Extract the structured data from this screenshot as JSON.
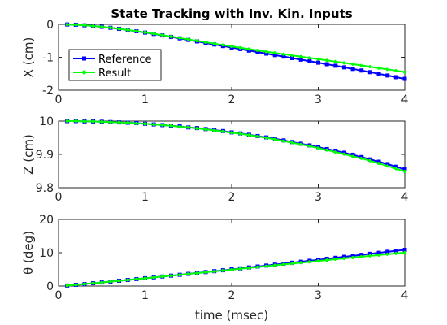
{
  "chart_data": {
    "title": "State Tracking with Inv. Kin. Inputs",
    "xlabel": "time (msec)",
    "legend": {
      "placement": "inside-left",
      "entries": [
        {
          "name": "Reference",
          "color": "#0000ff",
          "marker": "square"
        },
        {
          "name": "Result",
          "color": "#00ff00",
          "marker": "circle"
        }
      ]
    },
    "subplots": [
      {
        "type": "line",
        "ylabel": "X (cm)",
        "xlim": [
          0,
          4
        ],
        "ylim": [
          -2,
          0
        ],
        "xticks": [
          "0",
          "1",
          "2",
          "3",
          "4"
        ],
        "yticks": [
          "-2",
          "-1",
          "0"
        ],
        "x": [
          0.1,
          0.2,
          0.3,
          0.4,
          0.5,
          0.6,
          0.7,
          0.8,
          0.9,
          1.0,
          1.1,
          1.2,
          1.3,
          1.4,
          1.5,
          1.6,
          1.7,
          1.8,
          1.9,
          2.0,
          2.1,
          2.2,
          2.3,
          2.4,
          2.5,
          2.6,
          2.7,
          2.8,
          2.9,
          3.0,
          3.1,
          3.2,
          3.3,
          3.4,
          3.5,
          3.6,
          3.7,
          3.8,
          3.9,
          4.0
        ],
        "series": [
          {
            "name": "Reference",
            "color": "#0000ff",
            "marker": "square",
            "values": [
              -0.003,
              -0.013,
              -0.029,
              -0.05,
              -0.075,
              -0.104,
              -0.137,
              -0.172,
              -0.21,
              -0.25,
              -0.292,
              -0.336,
              -0.38,
              -0.425,
              -0.472,
              -0.518,
              -0.565,
              -0.612,
              -0.659,
              -0.705,
              -0.751,
              -0.797,
              -0.843,
              -0.889,
              -0.934,
              -0.979,
              -1.025,
              -1.071,
              -1.117,
              -1.163,
              -1.21,
              -1.257,
              -1.305,
              -1.353,
              -1.402,
              -1.452,
              -1.502,
              -1.553,
              -1.604,
              -1.655
            ]
          },
          {
            "name": "Result",
            "color": "#00ff00",
            "marker": "circle",
            "values": [
              -0.003,
              -0.013,
              -0.029,
              -0.05,
              -0.075,
              -0.103,
              -0.135,
              -0.169,
              -0.206,
              -0.245,
              -0.285,
              -0.327,
              -0.369,
              -0.412,
              -0.455,
              -0.499,
              -0.542,
              -0.585,
              -0.628,
              -0.67,
              -0.711,
              -0.751,
              -0.791,
              -0.83,
              -0.868,
              -0.906,
              -0.944,
              -0.981,
              -1.018,
              -1.056,
              -1.093,
              -1.131,
              -1.169,
              -1.208,
              -1.247,
              -1.286,
              -1.326,
              -1.366,
              -1.406,
              -1.446
            ]
          }
        ]
      },
      {
        "type": "line",
        "ylabel": "Z (cm)",
        "xlim": [
          0,
          4
        ],
        "ylim": [
          9.8,
          10
        ],
        "xticks": [
          "0",
          "1",
          "2",
          "3",
          "4"
        ],
        "yticks": [
          "9.8",
          "9.9",
          "10"
        ],
        "x": [
          0.1,
          0.2,
          0.3,
          0.4,
          0.5,
          0.6,
          0.7,
          0.8,
          0.9,
          1.0,
          1.1,
          1.2,
          1.3,
          1.4,
          1.5,
          1.6,
          1.7,
          1.8,
          1.9,
          2.0,
          2.1,
          2.2,
          2.3,
          2.4,
          2.5,
          2.6,
          2.7,
          2.8,
          2.9,
          3.0,
          3.1,
          3.2,
          3.3,
          3.4,
          3.5,
          3.6,
          3.7,
          3.8,
          3.9,
          4.0
        ],
        "series": [
          {
            "name": "Reference",
            "color": "#0000ff",
            "marker": "square",
            "values": [
              10.0,
              10.0,
              9.999,
              9.999,
              9.998,
              9.997,
              9.996,
              9.995,
              9.994,
              9.992,
              9.99,
              9.988,
              9.986,
              9.984,
              9.981,
              9.979,
              9.976,
              9.973,
              9.97,
              9.966,
              9.963,
              9.959,
              9.955,
              9.951,
              9.947,
              9.942,
              9.937,
              9.932,
              9.927,
              9.922,
              9.916,
              9.911,
              9.905,
              9.899,
              9.892,
              9.885,
              9.878,
              9.871,
              9.863,
              9.855
            ]
          },
          {
            "name": "Result",
            "color": "#00ff00",
            "marker": "circle",
            "values": [
              10.0,
              10.0,
              9.999,
              9.999,
              9.998,
              9.997,
              9.996,
              9.995,
              9.993,
              9.992,
              9.99,
              9.988,
              9.986,
              9.983,
              9.981,
              9.978,
              9.975,
              9.972,
              9.969,
              9.965,
              9.962,
              9.958,
              9.954,
              9.95,
              9.945,
              9.94,
              9.935,
              9.93,
              9.925,
              9.919,
              9.913,
              9.907,
              9.901,
              9.894,
              9.888,
              9.881,
              9.873,
              9.865,
              9.857,
              9.849
            ]
          }
        ]
      },
      {
        "type": "line",
        "ylabel": "θ (deg)",
        "xlim": [
          0,
          4
        ],
        "ylim": [
          0,
          20
        ],
        "xticks": [
          "0",
          "1",
          "2",
          "3",
          "4"
        ],
        "yticks": [
          "0",
          "10",
          "20"
        ],
        "x": [
          0.1,
          0.2,
          0.3,
          0.4,
          0.5,
          0.6,
          0.7,
          0.8,
          0.9,
          1.0,
          1.1,
          1.2,
          1.3,
          1.4,
          1.5,
          1.6,
          1.7,
          1.8,
          1.9,
          2.0,
          2.1,
          2.2,
          2.3,
          2.4,
          2.5,
          2.6,
          2.7,
          2.8,
          2.9,
          3.0,
          3.1,
          3.2,
          3.3,
          3.4,
          3.5,
          3.6,
          3.7,
          3.8,
          3.9,
          4.0
        ],
        "series": [
          {
            "name": "Reference",
            "color": "#0000ff",
            "marker": "square",
            "values": [
              0.15,
              0.37,
              0.6,
              0.84,
              1.08,
              1.33,
              1.58,
              1.83,
              2.08,
              2.34,
              2.6,
              2.86,
              3.12,
              3.38,
              3.65,
              3.92,
              4.19,
              4.46,
              4.73,
              5.01,
              5.29,
              5.57,
              5.85,
              6.13,
              6.42,
              6.71,
              7.0,
              7.29,
              7.58,
              7.87,
              8.17,
              8.47,
              8.77,
              9.07,
              9.37,
              9.67,
              9.97,
              10.27,
              10.57,
              10.85
            ]
          },
          {
            "name": "Result",
            "color": "#00ff00",
            "marker": "circle",
            "values": [
              0.15,
              0.37,
              0.6,
              0.84,
              1.08,
              1.33,
              1.58,
              1.83,
              2.08,
              2.33,
              2.59,
              2.85,
              3.1,
              3.36,
              3.62,
              3.88,
              4.14,
              4.4,
              4.66,
              4.92,
              5.18,
              5.44,
              5.7,
              5.96,
              6.22,
              6.48,
              6.74,
              7.0,
              7.26,
              7.52,
              7.78,
              8.04,
              8.3,
              8.55,
              8.8,
              9.05,
              9.3,
              9.55,
              9.8,
              10.0
            ]
          }
        ]
      }
    ]
  }
}
